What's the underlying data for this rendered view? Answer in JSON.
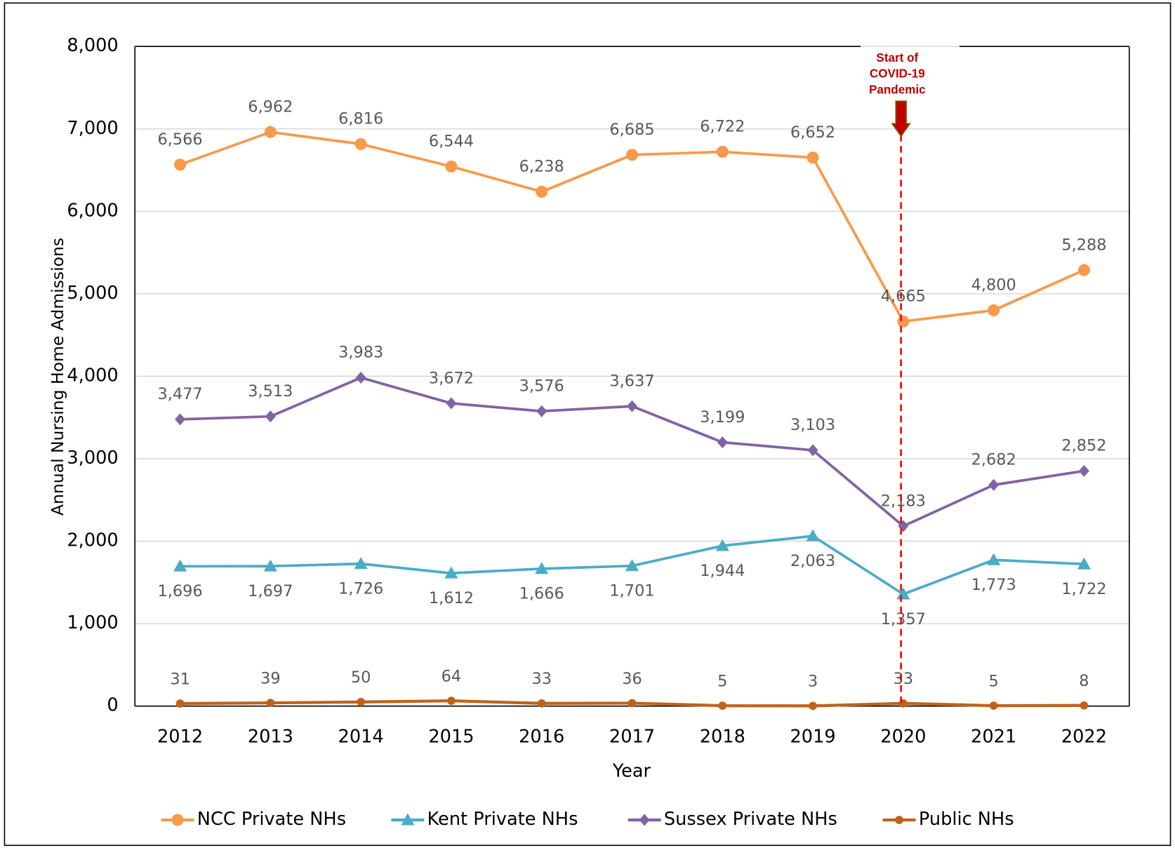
{
  "chart_data": {
    "type": "line",
    "x_label": "Year",
    "y_label": "Annual Nursing Home Admissions",
    "categories": [
      "2012",
      "2013",
      "2014",
      "2015",
      "2016",
      "2017",
      "2018",
      "2019",
      "2020",
      "2021",
      "2022"
    ],
    "ylim": [
      0,
      8000
    ],
    "yticks": [
      0,
      {
        "value": 1000,
        "label": "1,000"
      },
      {
        "value": 2000,
        "label": "2,000"
      },
      {
        "value": 3000,
        "label": "3,000"
      },
      {
        "value": 4000,
        "label": "4,000"
      },
      {
        "value": 5000,
        "label": "5,000"
      },
      {
        "value": 6000,
        "label": "6,000"
      },
      {
        "value": 7000,
        "label": "7,000"
      },
      {
        "value": 8000,
        "label": "8,000"
      }
    ],
    "grid": true,
    "legend": "bottom",
    "series": [
      {
        "name": "NCC Private NHs",
        "color": "#f79a4c",
        "marker": "circle",
        "values": [
          6566,
          6962,
          6816,
          6544,
          6238,
          6685,
          6722,
          6652,
          4665,
          4800,
          5288
        ],
        "value_labels": [
          "6,566",
          "6,962",
          "6,816",
          "6,544",
          "6,238",
          "6,685",
          "6,722",
          "6,652",
          "4,665",
          "4,800",
          "5,288"
        ]
      },
      {
        "name": "Kent Private NHs",
        "color": "#4bacc6",
        "marker": "triangle",
        "values": [
          1696,
          1697,
          1726,
          1612,
          1666,
          1701,
          1944,
          2063,
          1357,
          1773,
          1722
        ],
        "value_labels": [
          "1,696",
          "1,697",
          "1,726",
          "1,612",
          "1,666",
          "1,701",
          "1,944",
          "2,063",
          "1,357",
          "1,773",
          "1,722"
        ]
      },
      {
        "name": "Sussex Private NHs",
        "color": "#8064a2",
        "marker": "diamond",
        "values": [
          3477,
          3513,
          3983,
          3672,
          3576,
          3637,
          3199,
          3103,
          2183,
          2682,
          2852
        ],
        "value_labels": [
          "3,477",
          "3,513",
          "3,983",
          "3,672",
          "3,576",
          "3,637",
          "3,199",
          "3,103",
          "2,183",
          "2,682",
          "2,852"
        ]
      },
      {
        "name": "Public NHs",
        "color": "#c0631a",
        "marker": "dot",
        "values": [
          31,
          39,
          50,
          64,
          33,
          36,
          5,
          3,
          33,
          5,
          8
        ]
      }
    ],
    "annotation": {
      "lines": [
        "Start of",
        "COVID-19",
        "Pandemic"
      ],
      "x": "2020",
      "color": "#c00000"
    }
  }
}
